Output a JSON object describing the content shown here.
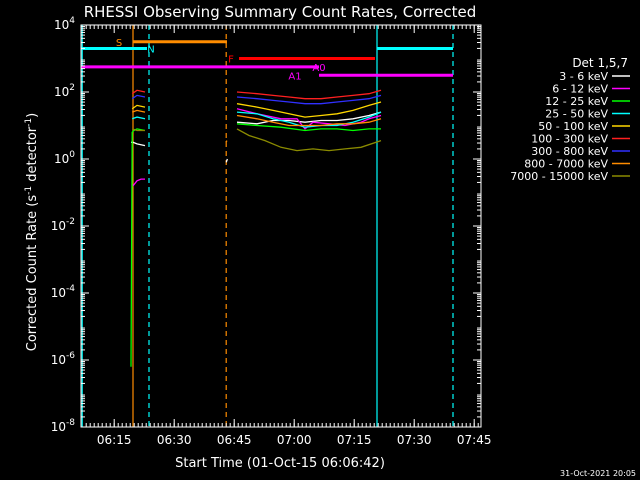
{
  "chart_data": {
    "type": "line",
    "title": "RHESSI Observing Summary Count Rates, Corrected",
    "xlabel": "Start Time (01-Oct-15 06:06:42)",
    "ylabel": "Corrected Count Rate (s⁻¹ detector⁻¹)",
    "ylabel_main": "Corrected Count Rate (s",
    "ylabel_mid": " detector",
    "ylabel_end": ")",
    "ylabel_sup": "-1",
    "y_scale": "log",
    "ylim_exp": [
      -8,
      4
    ],
    "y_ticks_exp": [
      4,
      2,
      0,
      -2,
      -4,
      -6,
      -8
    ],
    "xlim_min": [
      0,
      100
    ],
    "x_ticks": [
      {
        "min": 8.3,
        "label": "06:15"
      },
      {
        "min": 23.3,
        "label": "06:30"
      },
      {
        "min": 38.3,
        "label": "06:45"
      },
      {
        "min": 53.3,
        "label": "07:00"
      },
      {
        "min": 68.3,
        "label": "07:15"
      },
      {
        "min": 83.3,
        "label": "07:30"
      },
      {
        "min": 98.3,
        "label": "07:45"
      }
    ],
    "footer_date": "31-Oct-2021 20:05",
    "legend": {
      "header": "Det 1,5,7",
      "entries": [
        {
          "label": "3 - 6 keV",
          "color": "#ffffff"
        },
        {
          "label": "6 - 12 keV",
          "color": "#ff00ff"
        },
        {
          "label": "12 - 25 keV",
          "color": "#00ff00"
        },
        {
          "label": "25 - 50 keV",
          "color": "#00ffff"
        },
        {
          "label": "50 - 100 keV",
          "color": "#ffd700"
        },
        {
          "label": "100 - 300 keV",
          "color": "#ff2020"
        },
        {
          "label": "300 - 800 keV",
          "color": "#3030ff"
        },
        {
          "label": "800 - 7000 keV",
          "color": "#ff8c00"
        },
        {
          "label": "7000 - 15000 keV",
          "color": "#8b8b00"
        }
      ]
    },
    "series": [
      {
        "name": "3 - 6 keV",
        "color": "#ffffff",
        "segments": [
          [
            [
              12.5,
              0.5
            ],
            [
              13.0,
              0.5
            ],
            [
              14.0,
              0.45
            ],
            [
              16.0,
              0.4
            ]
          ],
          [
            [
              36.3,
              -0.1
            ],
            [
              36.6,
              0.0
            ]
          ],
          [
            [
              39.0,
              1.1
            ],
            [
              44.0,
              1.05
            ],
            [
              48.0,
              1.15
            ],
            [
              52.0,
              1.15
            ],
            [
              56.0,
              1.1
            ],
            [
              60.0,
              1.15
            ],
            [
              64.0,
              1.15
            ],
            [
              68.0,
              1.2
            ],
            [
              72.0,
              1.3
            ],
            [
              75.0,
              1.4
            ]
          ]
        ]
      },
      {
        "name": "6 - 12 keV",
        "color": "#ff00ff",
        "segments": [
          [
            [
              13.0,
              -0.8
            ],
            [
              14.0,
              -0.65
            ],
            [
              15.0,
              -0.6
            ],
            [
              16.0,
              -0.6
            ]
          ],
          [
            [
              39.0,
              1.5
            ],
            [
              44.0,
              1.35
            ],
            [
              50.0,
              1.2
            ],
            [
              54.0,
              1.2
            ],
            [
              56.0,
              0.9
            ],
            [
              58.0,
              1.1
            ],
            [
              62.0,
              1.05
            ],
            [
              66.0,
              1.0
            ],
            [
              70.0,
              1.1
            ],
            [
              72.0,
              1.2
            ],
            [
              75.0,
              1.3
            ]
          ]
        ]
      },
      {
        "name": "12 - 25 keV",
        "color": "#00ff00",
        "segments": [
          [
            [
              12.5,
              -6.2
            ],
            [
              12.8,
              0.8
            ],
            [
              13.2,
              0.85
            ],
            [
              14.0,
              0.9
            ],
            [
              16.0,
              0.85
            ]
          ],
          [
            [
              39.0,
              1.05
            ],
            [
              44.0,
              1.0
            ],
            [
              50.0,
              0.95
            ],
            [
              56.0,
              0.85
            ],
            [
              60.0,
              0.9
            ],
            [
              64.0,
              0.9
            ],
            [
              68.0,
              0.85
            ],
            [
              72.0,
              0.9
            ],
            [
              75.0,
              0.9
            ]
          ]
        ]
      },
      {
        "name": "25 - 50 keV",
        "color": "#00ffff",
        "segments": [
          [
            [
              12.8,
              1.2
            ],
            [
              14.0,
              1.25
            ],
            [
              16.0,
              1.2
            ]
          ],
          [
            [
              39.0,
              1.4
            ],
            [
              44.0,
              1.35
            ],
            [
              48.0,
              1.2
            ],
            [
              52.0,
              1.1
            ],
            [
              56.0,
              0.95
            ],
            [
              60.0,
              1.0
            ],
            [
              64.0,
              1.0
            ],
            [
              68.0,
              1.1
            ],
            [
              72.0,
              1.25
            ],
            [
              75.0,
              1.4
            ]
          ]
        ]
      },
      {
        "name": "50 - 100 keV",
        "color": "#ffd700",
        "segments": [
          [
            [
              12.8,
              1.5
            ],
            [
              14.0,
              1.6
            ],
            [
              16.0,
              1.55
            ]
          ],
          [
            [
              39.0,
              1.65
            ],
            [
              44.0,
              1.55
            ],
            [
              48.0,
              1.45
            ],
            [
              52.0,
              1.35
            ],
            [
              56.0,
              1.25
            ],
            [
              60.0,
              1.3
            ],
            [
              64.0,
              1.35
            ],
            [
              68.0,
              1.45
            ],
            [
              72.0,
              1.6
            ],
            [
              75.0,
              1.7
            ]
          ]
        ]
      },
      {
        "name": "100 - 300 keV",
        "color": "#ff2020",
        "segments": [
          [
            [
              12.8,
              1.95
            ],
            [
              14.0,
              2.05
            ],
            [
              16.0,
              2.0
            ]
          ],
          [
            [
              39.0,
              2.0
            ],
            [
              44.0,
              1.95
            ],
            [
              48.0,
              1.9
            ],
            [
              52.0,
              1.85
            ],
            [
              56.0,
              1.8
            ],
            [
              60.0,
              1.8
            ],
            [
              64.0,
              1.85
            ],
            [
              68.0,
              1.9
            ],
            [
              72.0,
              1.95
            ],
            [
              75.0,
              2.05
            ]
          ]
        ]
      },
      {
        "name": "300 - 800 keV",
        "color": "#3030ff",
        "segments": [
          [
            [
              12.8,
              1.8
            ],
            [
              14.0,
              1.9
            ],
            [
              16.0,
              1.85
            ]
          ],
          [
            [
              39.0,
              1.85
            ],
            [
              44.0,
              1.8
            ],
            [
              48.0,
              1.75
            ],
            [
              52.0,
              1.7
            ],
            [
              56.0,
              1.65
            ],
            [
              60.0,
              1.65
            ],
            [
              64.0,
              1.7
            ],
            [
              68.0,
              1.75
            ],
            [
              72.0,
              1.8
            ],
            [
              75.0,
              1.9
            ]
          ]
        ]
      },
      {
        "name": "800 - 7000 keV",
        "color": "#ff8c00",
        "segments": [
          [
            [
              12.8,
              1.4
            ],
            [
              14.0,
              1.45
            ],
            [
              16.0,
              1.4
            ]
          ],
          [
            [
              36.2,
              0.5
            ],
            [
              36.5,
              0.55
            ]
          ],
          [
            [
              39.0,
              1.3
            ],
            [
              44.0,
              1.2
            ],
            [
              48.0,
              1.1
            ],
            [
              52.0,
              1.0
            ],
            [
              56.0,
              1.0
            ],
            [
              60.0,
              1.0
            ],
            [
              64.0,
              1.05
            ],
            [
              68.0,
              1.05
            ],
            [
              72.0,
              1.1
            ],
            [
              75.0,
              1.2
            ]
          ]
        ]
      },
      {
        "name": "7000 - 15000 keV",
        "color": "#8b8b00",
        "segments": [
          [
            [
              12.8,
              0.9
            ],
            [
              14.0,
              0.85
            ],
            [
              16.0,
              0.85
            ]
          ],
          [
            [
              39.0,
              0.9
            ],
            [
              42.0,
              0.7
            ],
            [
              46.0,
              0.55
            ],
            [
              50.0,
              0.35
            ],
            [
              54.0,
              0.25
            ],
            [
              58.0,
              0.3
            ],
            [
              62.0,
              0.25
            ],
            [
              66.0,
              0.3
            ],
            [
              70.0,
              0.35
            ],
            [
              75.0,
              0.55
            ]
          ]
        ]
      }
    ],
    "flag_bars": [
      {
        "label": "S",
        "color": "#ff8c00",
        "x0": 13.0,
        "x1": 36.5,
        "yexp": 3.5
      },
      {
        "label": "N",
        "color": "#00ffff",
        "x0": 0,
        "x1": 16.5,
        "yexp": 3.3
      },
      {
        "label": "N",
        "color": "#00ffff",
        "x0": 74.0,
        "x1": 93.0,
        "yexp": 3.3
      },
      {
        "label": "F",
        "color": "#ff0000",
        "x0": 39.5,
        "x1": 73.5,
        "yexp": 3.0
      },
      {
        "label": "A0",
        "color": "#ff00ff",
        "x0": 0,
        "x1": 59.5,
        "yexp": 2.75
      },
      {
        "label": "A1",
        "color": "#ff00ff",
        "x0": 59.5,
        "x1": 93.0,
        "yexp": 2.5
      }
    ],
    "flag_labels": [
      {
        "text": "S",
        "color": "#ff8c00",
        "x": 9.5,
        "yexp": 3.5
      },
      {
        "text": "N",
        "color": "#00ffff",
        "x": 17.5,
        "yexp": 3.3
      },
      {
        "text": "F",
        "color": "#ff0000",
        "x": 37.5,
        "yexp": 3.0
      },
      {
        "text": "A0",
        "color": "#ff00ff",
        "x": 59.5,
        "yexp": 2.75
      },
      {
        "text": "A1",
        "color": "#ff00ff",
        "x": 53.5,
        "yexp": 2.5
      }
    ],
    "vlines": [
      {
        "min": 0.3,
        "color": "#00ffff",
        "dashed": false
      },
      {
        "min": 13.0,
        "color": "#ff8c00",
        "dashed": false
      },
      {
        "min": 17.0,
        "color": "#00ffff",
        "dashed": true
      },
      {
        "min": 36.3,
        "color": "#ff8c00",
        "dashed": true
      },
      {
        "min": 74.0,
        "color": "#00ffff",
        "dashed": false
      },
      {
        "min": 93.0,
        "color": "#00ffff",
        "dashed": true
      }
    ]
  }
}
